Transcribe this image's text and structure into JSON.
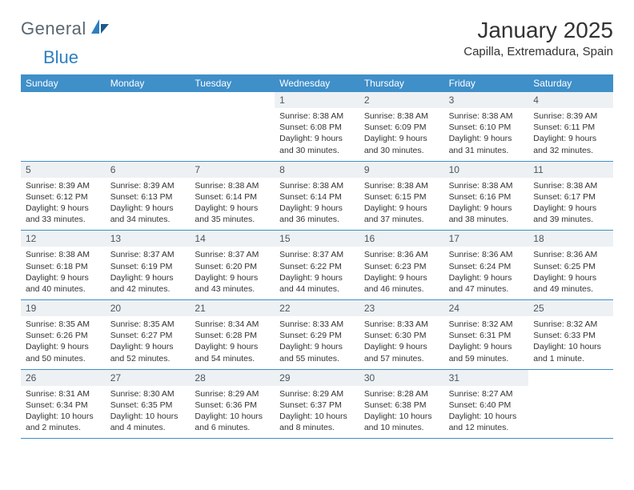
{
  "brand": {
    "text1": "General",
    "text2": "Blue"
  },
  "title": "January 2025",
  "location": "Capilla, Extremadura, Spain",
  "colors": {
    "header_bg": "#3f8fc9",
    "header_text": "#ffffff",
    "daynum_bg": "#eef1f3",
    "daynum_text": "#4a5560",
    "body_text": "#333333",
    "rule": "#3f8fc9"
  },
  "weekdays": [
    "Sunday",
    "Monday",
    "Tuesday",
    "Wednesday",
    "Thursday",
    "Friday",
    "Saturday"
  ],
  "weeks": [
    [
      {
        "n": "",
        "sunrise": "",
        "sunset": "",
        "daylight": ""
      },
      {
        "n": "",
        "sunrise": "",
        "sunset": "",
        "daylight": ""
      },
      {
        "n": "",
        "sunrise": "",
        "sunset": "",
        "daylight": ""
      },
      {
        "n": "1",
        "sunrise": "Sunrise: 8:38 AM",
        "sunset": "Sunset: 6:08 PM",
        "daylight": "Daylight: 9 hours and 30 minutes."
      },
      {
        "n": "2",
        "sunrise": "Sunrise: 8:38 AM",
        "sunset": "Sunset: 6:09 PM",
        "daylight": "Daylight: 9 hours and 30 minutes."
      },
      {
        "n": "3",
        "sunrise": "Sunrise: 8:38 AM",
        "sunset": "Sunset: 6:10 PM",
        "daylight": "Daylight: 9 hours and 31 minutes."
      },
      {
        "n": "4",
        "sunrise": "Sunrise: 8:39 AM",
        "sunset": "Sunset: 6:11 PM",
        "daylight": "Daylight: 9 hours and 32 minutes."
      }
    ],
    [
      {
        "n": "5",
        "sunrise": "Sunrise: 8:39 AM",
        "sunset": "Sunset: 6:12 PM",
        "daylight": "Daylight: 9 hours and 33 minutes."
      },
      {
        "n": "6",
        "sunrise": "Sunrise: 8:39 AM",
        "sunset": "Sunset: 6:13 PM",
        "daylight": "Daylight: 9 hours and 34 minutes."
      },
      {
        "n": "7",
        "sunrise": "Sunrise: 8:38 AM",
        "sunset": "Sunset: 6:14 PM",
        "daylight": "Daylight: 9 hours and 35 minutes."
      },
      {
        "n": "8",
        "sunrise": "Sunrise: 8:38 AM",
        "sunset": "Sunset: 6:14 PM",
        "daylight": "Daylight: 9 hours and 36 minutes."
      },
      {
        "n": "9",
        "sunrise": "Sunrise: 8:38 AM",
        "sunset": "Sunset: 6:15 PM",
        "daylight": "Daylight: 9 hours and 37 minutes."
      },
      {
        "n": "10",
        "sunrise": "Sunrise: 8:38 AM",
        "sunset": "Sunset: 6:16 PM",
        "daylight": "Daylight: 9 hours and 38 minutes."
      },
      {
        "n": "11",
        "sunrise": "Sunrise: 8:38 AM",
        "sunset": "Sunset: 6:17 PM",
        "daylight": "Daylight: 9 hours and 39 minutes."
      }
    ],
    [
      {
        "n": "12",
        "sunrise": "Sunrise: 8:38 AM",
        "sunset": "Sunset: 6:18 PM",
        "daylight": "Daylight: 9 hours and 40 minutes."
      },
      {
        "n": "13",
        "sunrise": "Sunrise: 8:37 AM",
        "sunset": "Sunset: 6:19 PM",
        "daylight": "Daylight: 9 hours and 42 minutes."
      },
      {
        "n": "14",
        "sunrise": "Sunrise: 8:37 AM",
        "sunset": "Sunset: 6:20 PM",
        "daylight": "Daylight: 9 hours and 43 minutes."
      },
      {
        "n": "15",
        "sunrise": "Sunrise: 8:37 AM",
        "sunset": "Sunset: 6:22 PM",
        "daylight": "Daylight: 9 hours and 44 minutes."
      },
      {
        "n": "16",
        "sunrise": "Sunrise: 8:36 AM",
        "sunset": "Sunset: 6:23 PM",
        "daylight": "Daylight: 9 hours and 46 minutes."
      },
      {
        "n": "17",
        "sunrise": "Sunrise: 8:36 AM",
        "sunset": "Sunset: 6:24 PM",
        "daylight": "Daylight: 9 hours and 47 minutes."
      },
      {
        "n": "18",
        "sunrise": "Sunrise: 8:36 AM",
        "sunset": "Sunset: 6:25 PM",
        "daylight": "Daylight: 9 hours and 49 minutes."
      }
    ],
    [
      {
        "n": "19",
        "sunrise": "Sunrise: 8:35 AM",
        "sunset": "Sunset: 6:26 PM",
        "daylight": "Daylight: 9 hours and 50 minutes."
      },
      {
        "n": "20",
        "sunrise": "Sunrise: 8:35 AM",
        "sunset": "Sunset: 6:27 PM",
        "daylight": "Daylight: 9 hours and 52 minutes."
      },
      {
        "n": "21",
        "sunrise": "Sunrise: 8:34 AM",
        "sunset": "Sunset: 6:28 PM",
        "daylight": "Daylight: 9 hours and 54 minutes."
      },
      {
        "n": "22",
        "sunrise": "Sunrise: 8:33 AM",
        "sunset": "Sunset: 6:29 PM",
        "daylight": "Daylight: 9 hours and 55 minutes."
      },
      {
        "n": "23",
        "sunrise": "Sunrise: 8:33 AM",
        "sunset": "Sunset: 6:30 PM",
        "daylight": "Daylight: 9 hours and 57 minutes."
      },
      {
        "n": "24",
        "sunrise": "Sunrise: 8:32 AM",
        "sunset": "Sunset: 6:31 PM",
        "daylight": "Daylight: 9 hours and 59 minutes."
      },
      {
        "n": "25",
        "sunrise": "Sunrise: 8:32 AM",
        "sunset": "Sunset: 6:33 PM",
        "daylight": "Daylight: 10 hours and 1 minute."
      }
    ],
    [
      {
        "n": "26",
        "sunrise": "Sunrise: 8:31 AM",
        "sunset": "Sunset: 6:34 PM",
        "daylight": "Daylight: 10 hours and 2 minutes."
      },
      {
        "n": "27",
        "sunrise": "Sunrise: 8:30 AM",
        "sunset": "Sunset: 6:35 PM",
        "daylight": "Daylight: 10 hours and 4 minutes."
      },
      {
        "n": "28",
        "sunrise": "Sunrise: 8:29 AM",
        "sunset": "Sunset: 6:36 PM",
        "daylight": "Daylight: 10 hours and 6 minutes."
      },
      {
        "n": "29",
        "sunrise": "Sunrise: 8:29 AM",
        "sunset": "Sunset: 6:37 PM",
        "daylight": "Daylight: 10 hours and 8 minutes."
      },
      {
        "n": "30",
        "sunrise": "Sunrise: 8:28 AM",
        "sunset": "Sunset: 6:38 PM",
        "daylight": "Daylight: 10 hours and 10 minutes."
      },
      {
        "n": "31",
        "sunrise": "Sunrise: 8:27 AM",
        "sunset": "Sunset: 6:40 PM",
        "daylight": "Daylight: 10 hours and 12 minutes."
      },
      {
        "n": "",
        "sunrise": "",
        "sunset": "",
        "daylight": ""
      }
    ]
  ]
}
